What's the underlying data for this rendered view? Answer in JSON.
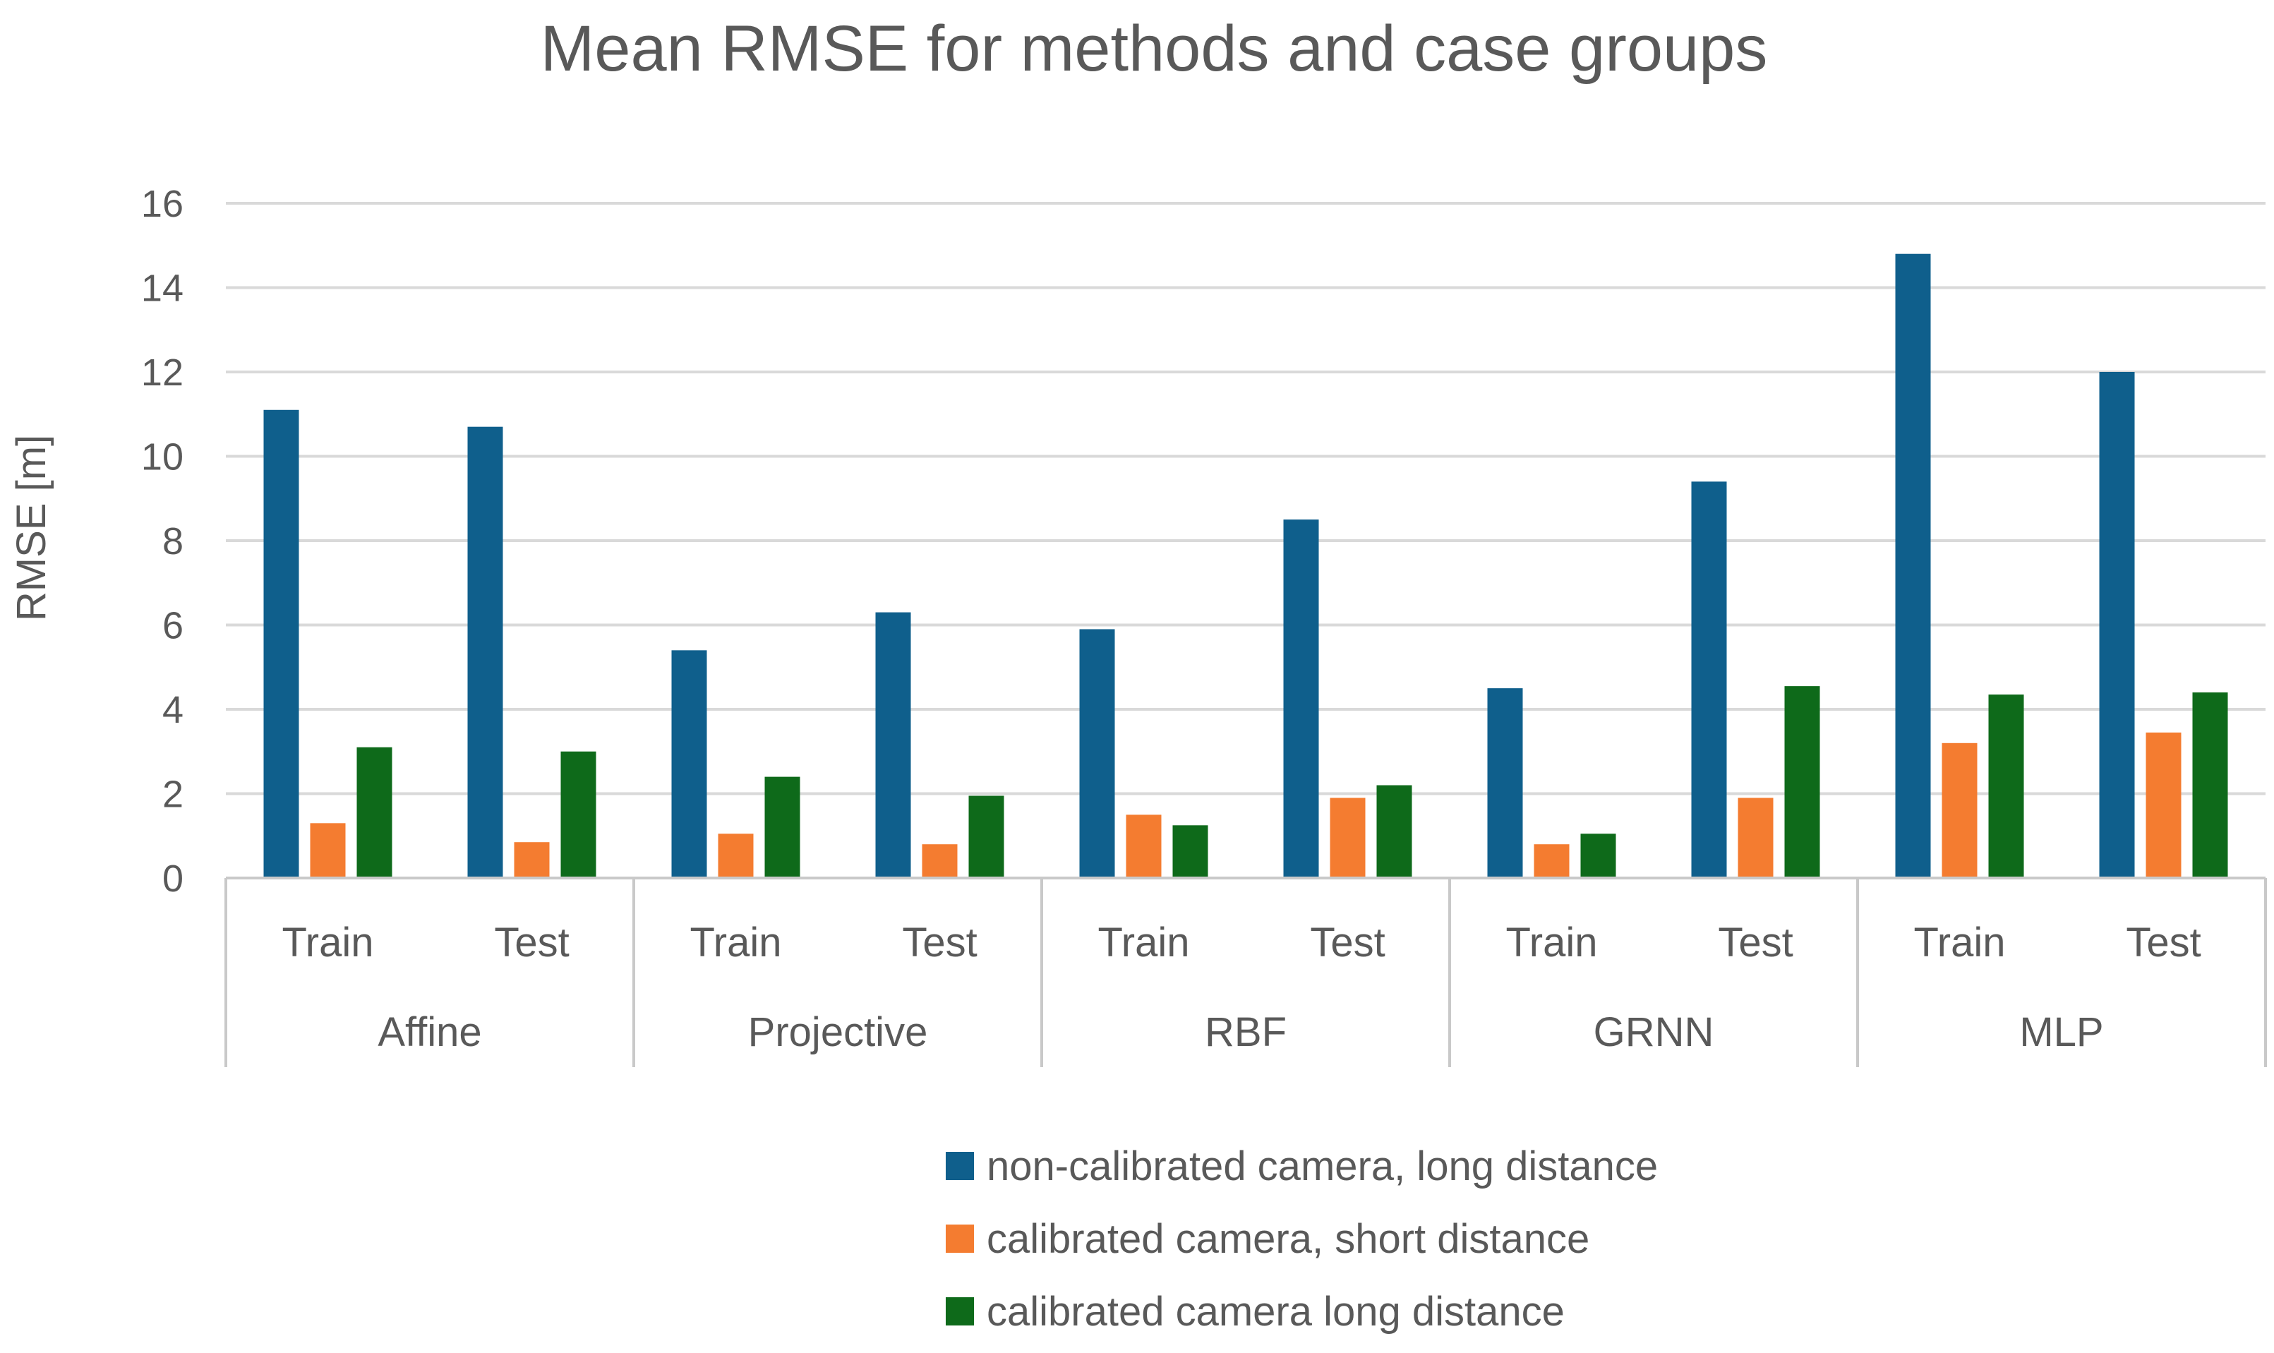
{
  "chart_data": {
    "type": "bar",
    "title": "Mean RMSE for methods and case groups",
    "xlabel": "",
    "ylabel": "RMSE [m]",
    "ylim": [
      0,
      16
    ],
    "yticks": [
      0,
      2,
      4,
      6,
      8,
      10,
      12,
      14,
      16
    ],
    "grid": true,
    "legend_position": "bottom",
    "groups": [
      "Affine",
      "Projective",
      "RBF",
      "GRNN",
      "MLP"
    ],
    "subcategories": [
      "Train",
      "Test"
    ],
    "categories": [
      "Affine Train",
      "Affine Test",
      "Projective Train",
      "Projective Test",
      "RBF Train",
      "RBF Test",
      "GRNN Train",
      "GRNN Test",
      "MLP Train",
      "MLP Test"
    ],
    "series": [
      {
        "name": "non-calibrated camera, long distance",
        "color": "#0f5f8c",
        "values": [
          11.1,
          10.7,
          5.4,
          6.3,
          5.9,
          8.5,
          4.5,
          9.4,
          14.8,
          12.0
        ]
      },
      {
        "name": "calibrated camera, short distance",
        "color": "#f47c30",
        "values": [
          1.3,
          0.85,
          1.05,
          0.8,
          1.5,
          1.9,
          0.8,
          1.9,
          3.2,
          3.45
        ]
      },
      {
        "name": "calibrated camera long distance",
        "color": "#0e6a1a",
        "values": [
          3.1,
          3.0,
          2.4,
          1.95,
          1.25,
          2.2,
          1.05,
          4.55,
          4.35,
          4.4
        ]
      }
    ]
  }
}
